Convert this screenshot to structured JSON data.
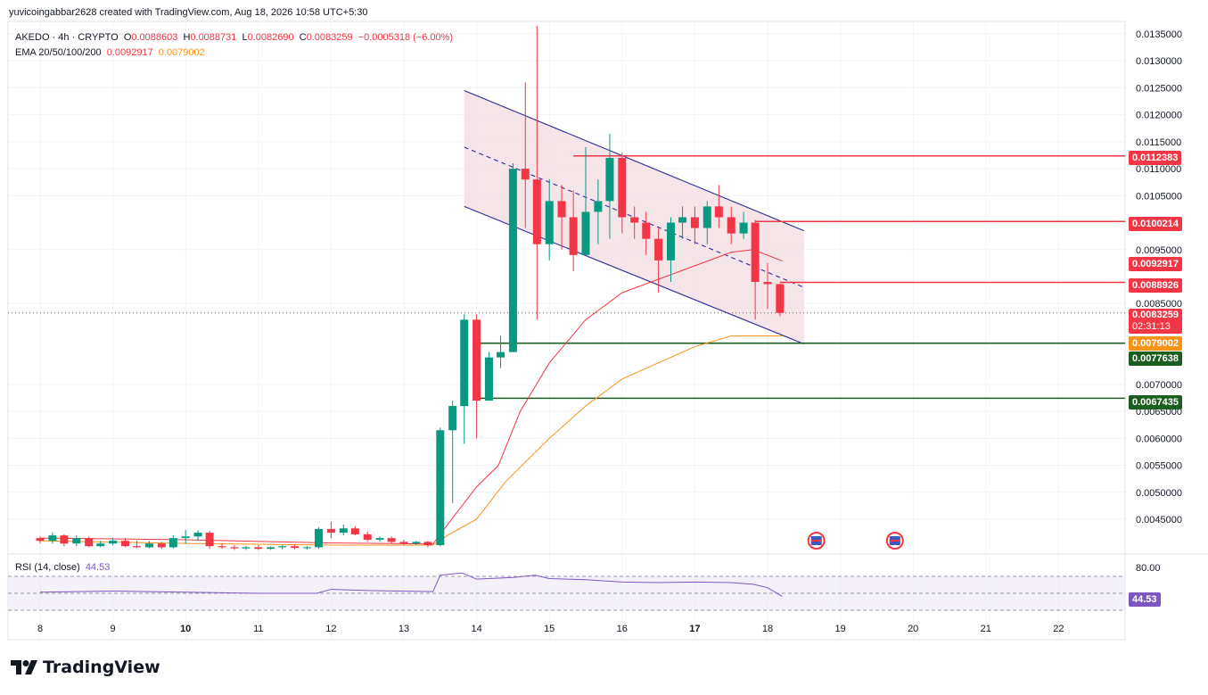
{
  "header": {
    "credit": "yuvicoingabbar2628 created with TradingView.com, Aug 18, 2026 10:58 UTC+5:30",
    "symbol": "AKEDO · 4h · CRYPTO",
    "o_label": "O",
    "o_value": "0.0088603",
    "h_label": "H",
    "h_value": "0.0088731",
    "l_label": "L",
    "l_value": "0.0082690",
    "c_label": "C",
    "c_value": "0.0083259",
    "change": "−0.0005318 (−6.00%)",
    "ema_label": "EMA 20/50/100/200",
    "ema_value_1": "0.0092917",
    "ema_value_2": "0.0079002"
  },
  "rsi": {
    "label": "RSI (14, close)",
    "value": "44.53",
    "upper_level": "80.00"
  },
  "branding": {
    "logo_text": "TradingView"
  },
  "price_tags": {
    "r1": "0.0112383",
    "r2": "0.0100214",
    "ema20": "0.0092917",
    "r3": "0.0088926",
    "last": "0.0083259",
    "countdown": "02:31:13",
    "ema50": "0.0079002",
    "s1": "0.0077638",
    "s2": "0.0067435"
  },
  "colors": {
    "up": "#089981",
    "down": "#f23645",
    "ema20": "#f23645",
    "ema50": "#f7931a",
    "channel": "#2a2e99",
    "support": "#1b5e20",
    "rsi": "#7e57c2"
  },
  "chart_data": {
    "type": "candlestick",
    "timeframe": "4h",
    "y_ticks": [
      0.0135,
      0.013,
      0.0125,
      0.012,
      0.0115,
      0.011,
      0.0105,
      0.0095,
      0.0085,
      0.007,
      0.0065,
      0.006,
      0.0055,
      0.005,
      0.0045
    ],
    "y_tick_labels": [
      "0.0135000",
      "0.0130000",
      "0.0125000",
      "0.0120000",
      "0.0115000",
      "0.0110000",
      "0.0105000",
      "0.0095000",
      "0.0085000",
      "0.0070000",
      "0.0065000",
      "0.0060000",
      "0.0055000",
      "0.0050000",
      "0.0045000"
    ],
    "x_labels": [
      "8",
      "9",
      "10",
      "11",
      "12",
      "13",
      "14",
      "15",
      "16",
      "17",
      "18",
      "19",
      "20",
      "21",
      "22"
    ],
    "ylim": [
      0.0039,
      0.0137
    ],
    "candles": [
      [
        8.0,
        0.00415,
        0.00418,
        0.00405,
        0.0041
      ],
      [
        8.17,
        0.0041,
        0.00425,
        0.00405,
        0.0042
      ],
      [
        8.33,
        0.0042,
        0.00422,
        0.004,
        0.00405
      ],
      [
        8.5,
        0.00405,
        0.0042,
        0.004,
        0.00415
      ],
      [
        8.67,
        0.00415,
        0.00418,
        0.00398,
        0.004
      ],
      [
        8.83,
        0.004,
        0.0041,
        0.00398,
        0.00405
      ],
      [
        9.0,
        0.00405,
        0.00415,
        0.00402,
        0.0041
      ],
      [
        9.17,
        0.0041,
        0.00415,
        0.00398,
        0.004
      ],
      [
        9.33,
        0.004,
        0.0041,
        0.00396,
        0.00398
      ],
      [
        9.5,
        0.00398,
        0.0041,
        0.00396,
        0.00405
      ],
      [
        9.67,
        0.00405,
        0.00408,
        0.00395,
        0.00398
      ],
      [
        9.83,
        0.00398,
        0.0042,
        0.00396,
        0.00415
      ],
      [
        10.0,
        0.00415,
        0.0043,
        0.00405,
        0.00418
      ],
      [
        10.17,
        0.00418,
        0.0043,
        0.0041,
        0.00425
      ],
      [
        10.33,
        0.00425,
        0.00428,
        0.00395,
        0.004
      ],
      [
        10.5,
        0.004,
        0.00405,
        0.00395,
        0.00398
      ],
      [
        10.67,
        0.00398,
        0.00402,
        0.00393,
        0.00396
      ],
      [
        10.83,
        0.00396,
        0.004,
        0.00393,
        0.00398
      ],
      [
        11.0,
        0.00398,
        0.00402,
        0.00393,
        0.00395
      ],
      [
        11.17,
        0.00395,
        0.004,
        0.00393,
        0.00398
      ],
      [
        11.33,
        0.00398,
        0.00402,
        0.00394,
        0.004
      ],
      [
        11.5,
        0.004,
        0.00403,
        0.00394,
        0.00397
      ],
      [
        11.67,
        0.00397,
        0.004,
        0.00394,
        0.00398
      ],
      [
        11.83,
        0.00398,
        0.00435,
        0.00395,
        0.00432
      ],
      [
        12.0,
        0.00432,
        0.00445,
        0.00415,
        0.00425
      ],
      [
        12.17,
        0.00425,
        0.0044,
        0.0042,
        0.00433
      ],
      [
        12.33,
        0.00433,
        0.00437,
        0.0042,
        0.00422
      ],
      [
        12.5,
        0.00422,
        0.00427,
        0.00408,
        0.00412
      ],
      [
        12.67,
        0.00412,
        0.00418,
        0.00408,
        0.00415
      ],
      [
        12.83,
        0.00415,
        0.00418,
        0.00405,
        0.00408
      ],
      [
        13.0,
        0.00408,
        0.00412,
        0.00402,
        0.00405
      ],
      [
        13.17,
        0.00405,
        0.0041,
        0.00402,
        0.00408
      ],
      [
        13.33,
        0.00408,
        0.0041,
        0.00398,
        0.00402
      ],
      [
        13.5,
        0.00402,
        0.0062,
        0.004,
        0.00615
      ],
      [
        13.67,
        0.00615,
        0.0067,
        0.0048,
        0.0066
      ],
      [
        13.83,
        0.0066,
        0.0083,
        0.0059,
        0.0082
      ],
      [
        14.0,
        0.0082,
        0.0083,
        0.006,
        0.0067
      ],
      [
        14.17,
        0.0067,
        0.0076,
        0.0067,
        0.0075
      ],
      [
        14.33,
        0.0075,
        0.0079,
        0.0073,
        0.0076
      ],
      [
        14.5,
        0.0076,
        0.0111,
        0.0076,
        0.011
      ],
      [
        14.67,
        0.011,
        0.0126,
        0.0099,
        0.0108
      ],
      [
        14.83,
        0.0108,
        0.01365,
        0.0082,
        0.0096
      ],
      [
        15.0,
        0.0096,
        0.0108,
        0.0093,
        0.0104
      ],
      [
        15.17,
        0.0104,
        0.0107,
        0.0095,
        0.0101
      ],
      [
        15.33,
        0.0101,
        0.0106,
        0.0091,
        0.0094
      ],
      [
        15.5,
        0.0094,
        0.0114,
        0.0094,
        0.0102
      ],
      [
        15.67,
        0.0102,
        0.0108,
        0.0096,
        0.0104
      ],
      [
        15.83,
        0.0104,
        0.01165,
        0.0097,
        0.0112
      ],
      [
        16.0,
        0.0112,
        0.0113,
        0.0098,
        0.0101
      ],
      [
        16.17,
        0.0101,
        0.0103,
        0.0097,
        0.01
      ],
      [
        16.33,
        0.01,
        0.0102,
        0.0094,
        0.0097
      ],
      [
        16.5,
        0.0097,
        0.0099,
        0.0087,
        0.0093
      ],
      [
        16.67,
        0.0093,
        0.0101,
        0.0089,
        0.01
      ],
      [
        16.83,
        0.01,
        0.0103,
        0.0097,
        0.0101
      ],
      [
        17.0,
        0.0101,
        0.0103,
        0.0096,
        0.0099
      ],
      [
        17.17,
        0.0099,
        0.0104,
        0.0096,
        0.0103
      ],
      [
        17.33,
        0.0103,
        0.0107,
        0.0099,
        0.0101
      ],
      [
        17.5,
        0.0101,
        0.0103,
        0.0096,
        0.0098
      ],
      [
        17.67,
        0.0098,
        0.0102,
        0.0097,
        0.01
      ],
      [
        17.83,
        0.01,
        0.01005,
        0.0082,
        0.0089
      ],
      [
        18.0,
        0.0089,
        0.00925,
        0.0084,
        0.00886
      ],
      [
        18.17,
        0.00886,
        0.008873,
        0.008269,
        0.008326
      ]
    ],
    "ema20": [
      [
        8,
        0.00415
      ],
      [
        10,
        0.00412
      ],
      [
        12,
        0.00406
      ],
      [
        13.4,
        0.00404
      ],
      [
        13.6,
        0.0044
      ],
      [
        14,
        0.0051
      ],
      [
        14.3,
        0.0055
      ],
      [
        14.6,
        0.0065
      ],
      [
        15,
        0.0074
      ],
      [
        15.5,
        0.0082
      ],
      [
        16,
        0.0087
      ],
      [
        16.5,
        0.00895
      ],
      [
        17,
        0.0092
      ],
      [
        17.5,
        0.00945
      ],
      [
        17.8,
        0.0095
      ],
      [
        18.2,
        0.00929
      ]
    ],
    "ema50": [
      [
        8,
        0.0041
      ],
      [
        10,
        0.00405
      ],
      [
        12,
        0.00402
      ],
      [
        13.4,
        0.00402
      ],
      [
        13.6,
        0.0042
      ],
      [
        14,
        0.0045
      ],
      [
        14.4,
        0.0052
      ],
      [
        15,
        0.006
      ],
      [
        15.5,
        0.0066
      ],
      [
        16,
        0.0071
      ],
      [
        16.5,
        0.0074
      ],
      [
        17,
        0.0077
      ],
      [
        17.5,
        0.0079
      ],
      [
        18.2,
        0.0079
      ]
    ],
    "rsi_series": [
      [
        8,
        52
      ],
      [
        9,
        54
      ],
      [
        10,
        52
      ],
      [
        11,
        50
      ],
      [
        11.8,
        50
      ],
      [
        12,
        57
      ],
      [
        12.5,
        55
      ],
      [
        13.4,
        53
      ],
      [
        13.5,
        82
      ],
      [
        13.8,
        86
      ],
      [
        14,
        75
      ],
      [
        14.5,
        78
      ],
      [
        14.8,
        82
      ],
      [
        15,
        76
      ],
      [
        15.5,
        74
      ],
      [
        16,
        70
      ],
      [
        16.5,
        69
      ],
      [
        17,
        70
      ],
      [
        17.5,
        69
      ],
      [
        17.8,
        66
      ],
      [
        18,
        60
      ],
      [
        18.2,
        44.53
      ]
    ],
    "channel": {
      "upper": [
        [
          13.83,
          0.01245
        ],
        [
          18.5,
          0.00985
        ]
      ],
      "middle": [
        [
          13.83,
          0.0114
        ],
        [
          18.5,
          0.0088
        ]
      ],
      "lower": [
        [
          13.83,
          0.0103
        ],
        [
          18.5,
          0.00775
        ]
      ]
    },
    "resistance_levels": [
      {
        "value": 0.0112383,
        "from": 15.33
      },
      {
        "value": 0.0100214,
        "from": 17.83
      },
      {
        "value": 0.0088926,
        "from": 18.17
      }
    ],
    "support_levels": [
      {
        "value": 0.0077638,
        "from": 14.0
      },
      {
        "value": 0.0067435,
        "from": 14.0
      }
    ],
    "rsi_levels": [
      80,
      50,
      20
    ]
  }
}
